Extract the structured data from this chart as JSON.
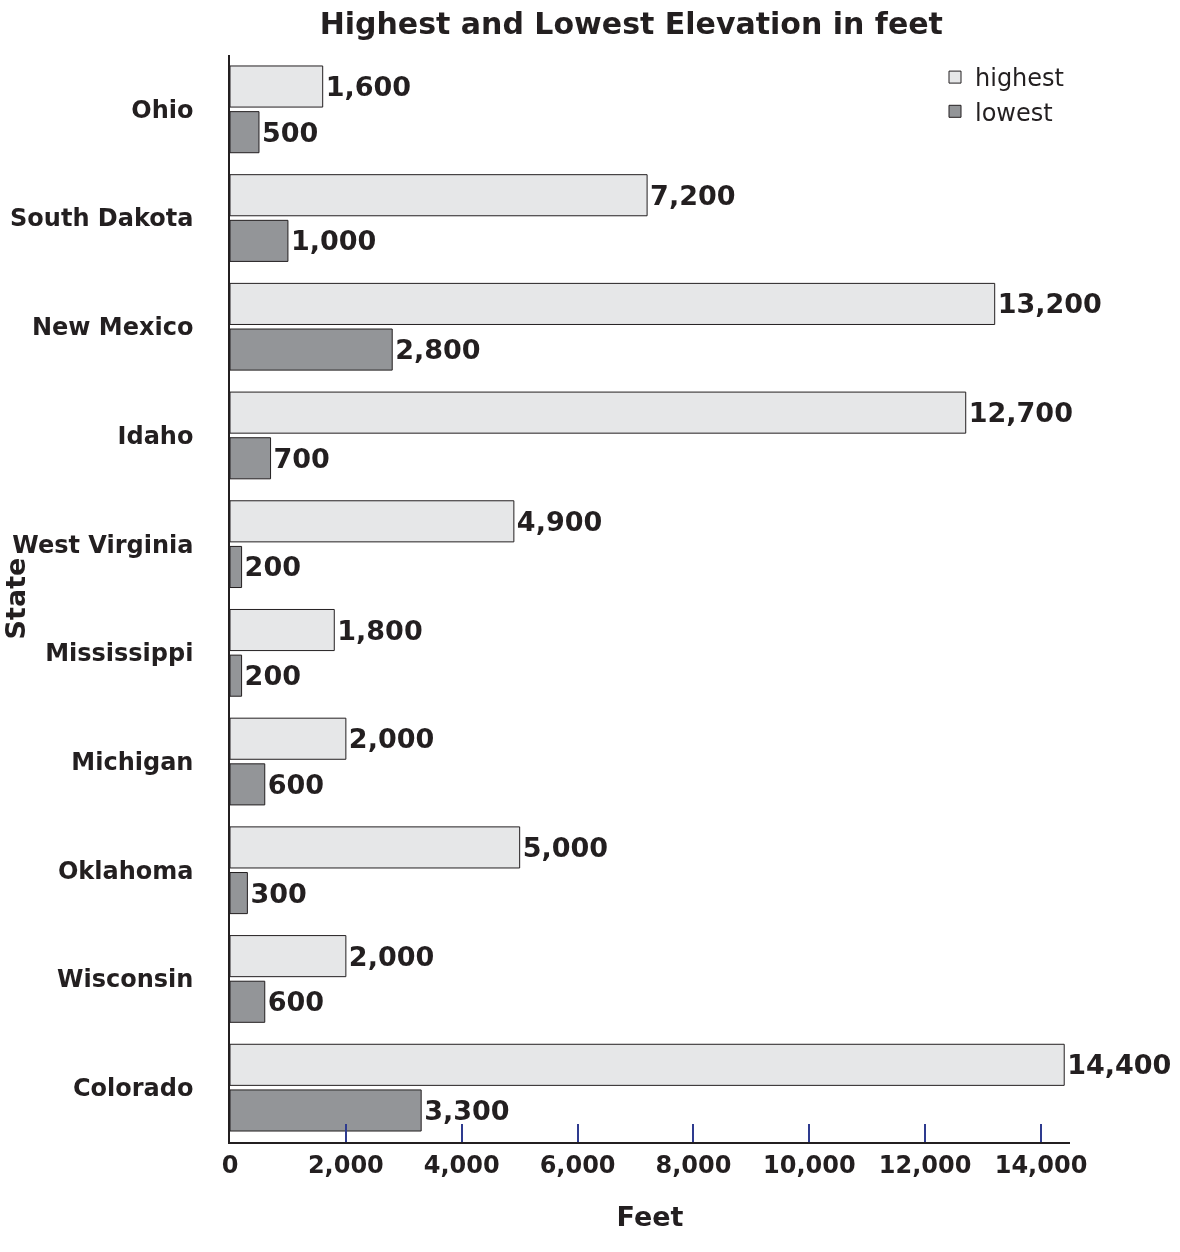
{
  "chart_data": {
    "type": "bar",
    "orientation": "horizontal",
    "title": "Highest and Lowest Elevation in feet",
    "xlabel": "Feet",
    "ylabel": "State",
    "categories": [
      "Ohio",
      "South Dakota",
      "New Mexico",
      "Idaho",
      "West Virginia",
      "Mississippi",
      "Michigan",
      "Oklahoma",
      "Wisconsin",
      "Colorado"
    ],
    "series": [
      {
        "name": "highest",
        "color": "#e6e7e8",
        "values": [
          1600,
          7200,
          13200,
          12700,
          4900,
          1800,
          2000,
          5000,
          2000,
          14400
        ],
        "value_labels": [
          "1,600",
          "7,200",
          "13,200",
          "12,700",
          "4,900",
          "1,800",
          "2,000",
          "5,000",
          "2,000",
          "14,400"
        ]
      },
      {
        "name": "lowest",
        "color": "#939598",
        "values": [
          500,
          1000,
          2800,
          700,
          200,
          200,
          600,
          300,
          600,
          3300
        ],
        "value_labels": [
          "500",
          "1,000",
          "2,800",
          "700",
          "200",
          "200",
          "600",
          "300",
          "600",
          "3,300"
        ]
      }
    ],
    "xlim": [
      0,
      14500
    ],
    "xticks": [
      0,
      {
        "value": 2000,
        "label": "2,000"
      },
      {
        "value": 4000,
        "label": "4,000"
      },
      {
        "value": 6000,
        "label": "6,000"
      },
      {
        "value": 8000,
        "label": "8,000"
      },
      {
        "value": 10000,
        "label": "10,000"
      },
      {
        "value": 12000,
        "label": "12,000"
      },
      {
        "value": 14000,
        "label": "14,000"
      }
    ],
    "legend": "top right",
    "grid": false
  }
}
